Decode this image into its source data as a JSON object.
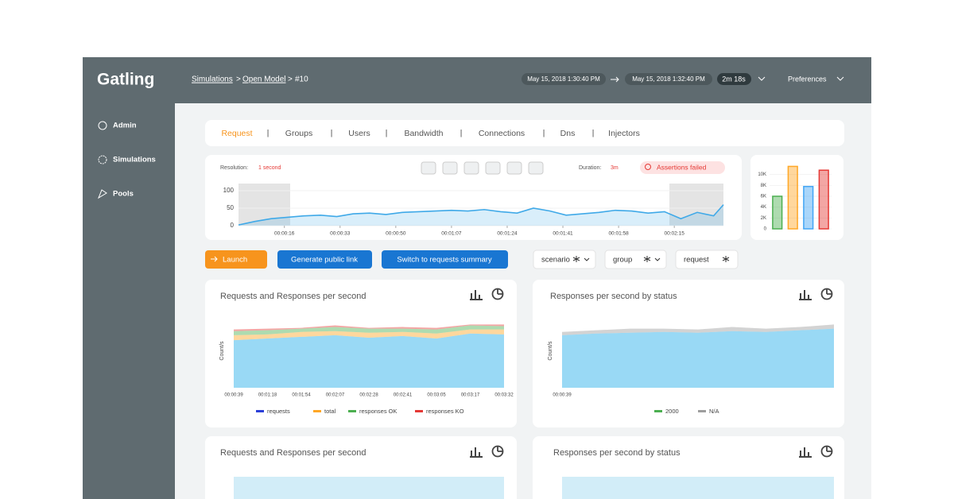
{
  "logo": "Gatling",
  "breadcrumb": {
    "items": [
      "Simulations",
      "Open Model",
      "#10"
    ],
    "separator": ">"
  },
  "run": {
    "start": "May 15, 2018 1:30:40 PM",
    "end": "May 15, 2018 1:32:40 PM",
    "length": "2m 18s"
  },
  "preferences": "Preferences",
  "sidebar": [
    "Admin",
    "Simulations",
    "Pools"
  ],
  "tabs": {
    "items": [
      "Request",
      "Groups",
      "Users",
      "Bandwidth",
      "Connections",
      "Dns",
      "Injectors"
    ],
    "separator": "|"
  },
  "timeline_header": {
    "resolution_label": "Resolution:",
    "resolution": "1 second",
    "duration_label": "Duration:",
    "duration": "3m",
    "assertions": "Assertions failed"
  },
  "buttons": [
    "Launch",
    "Generate public link",
    "Switch to requests summary"
  ],
  "filters": [
    "scenario",
    "group",
    "request"
  ],
  "bottom_panels": [
    "Requests and Responses per second",
    "Responses per second by status"
  ],
  "chart_data": [
    {
      "type": "line",
      "color": "#3fa9e8",
      "x": [
        2,
        7,
        12,
        17,
        22,
        27,
        32,
        37,
        42,
        47,
        52,
        57,
        62,
        67,
        72,
        77,
        82,
        87,
        92,
        97,
        102,
        107,
        112,
        117,
        122,
        127,
        132,
        137,
        142,
        147,
        150
      ],
      "values": [
        2,
        12,
        20,
        24,
        28,
        30,
        26,
        34,
        36,
        32,
        38,
        40,
        42,
        44,
        42,
        46,
        40,
        36,
        50,
        42,
        30,
        34,
        38,
        44,
        42,
        36,
        40,
        20,
        38,
        28,
        60
      ],
      "xlim": [
        2,
        150
      ],
      "ylim": [
        0,
        100
      ],
      "yticks": [
        0,
        50,
        100
      ],
      "xticks": [
        {
          "value": 16,
          "label": "00:00:16"
        },
        {
          "value": 33,
          "label": "00:00:33"
        },
        {
          "value": 50,
          "label": "00:00:50"
        },
        {
          "value": 67,
          "label": "00:01:07"
        },
        {
          "value": 84,
          "label": "00:01:24"
        },
        {
          "value": 101,
          "label": "00:01:41"
        },
        {
          "value": 118,
          "label": "00:01:58"
        },
        {
          "value": 135,
          "label": "00:02:15"
        }
      ]
    },
    {
      "type": "bar",
      "categories": [
        null,
        null,
        null,
        null
      ],
      "values": [
        6000,
        11500,
        7800,
        10800
      ],
      "colors": [
        "#4caf50",
        "#ffa726",
        "#42a5f5",
        "#e53935"
      ],
      "ylim": [
        0,
        12000
      ],
      "yticks": [
        0,
        {
          "value": 2000,
          "label": "2K"
        },
        {
          "value": 4000,
          "label": "4K"
        },
        {
          "value": 6000,
          "label": "6K"
        },
        {
          "value": 8000,
          "label": "8K"
        },
        {
          "value": 10000,
          "label": "10K"
        }
      ]
    },
    {
      "type": "area",
      "title": "Requests and Responses per second",
      "y_label": "Count/s",
      "categories": [
        "00:00:39",
        "00:01:18",
        "00:01:54",
        "00:02:07",
        "00:02:28",
        "00:02:41",
        "00:03:05",
        "00:03:17",
        "00:03:32"
      ],
      "ylim": [
        0,
        90
      ],
      "series": [
        {
          "name": "requests",
          "color": "#2b3fd8",
          "values": [
            58,
            60,
            62,
            64,
            61,
            63,
            60,
            66,
            65
          ]
        },
        {
          "name": "total",
          "color": "#ffa726",
          "values": [
            6,
            5,
            6,
            5,
            6,
            5,
            6,
            5,
            6
          ]
        },
        {
          "name": "responses OK",
          "color": "#4caf50",
          "values": [
            5,
            5,
            4,
            5,
            5,
            4,
            5,
            5,
            4
          ]
        },
        {
          "name": "responses KO",
          "color": "#e53935",
          "values": [
            2,
            2,
            1,
            2,
            1,
            2,
            2,
            1,
            2
          ]
        }
      ]
    },
    {
      "type": "area",
      "title": "Responses per second by status",
      "y_label": "Count/s",
      "categories": [
        "00:00:39",
        null,
        null,
        null,
        null,
        null,
        null,
        null,
        null
      ],
      "ylim": [
        0,
        90
      ],
      "series": [
        {
          "name": "2000",
          "color": "#4caf50",
          "values": [
            64,
            66,
            67,
            68,
            67,
            69,
            68,
            70,
            72
          ]
        },
        {
          "name": "N/A",
          "color": "#9e9e9e",
          "values": [
            4,
            4,
            5,
            4,
            4,
            5,
            4,
            4,
            5
          ]
        }
      ]
    }
  ]
}
